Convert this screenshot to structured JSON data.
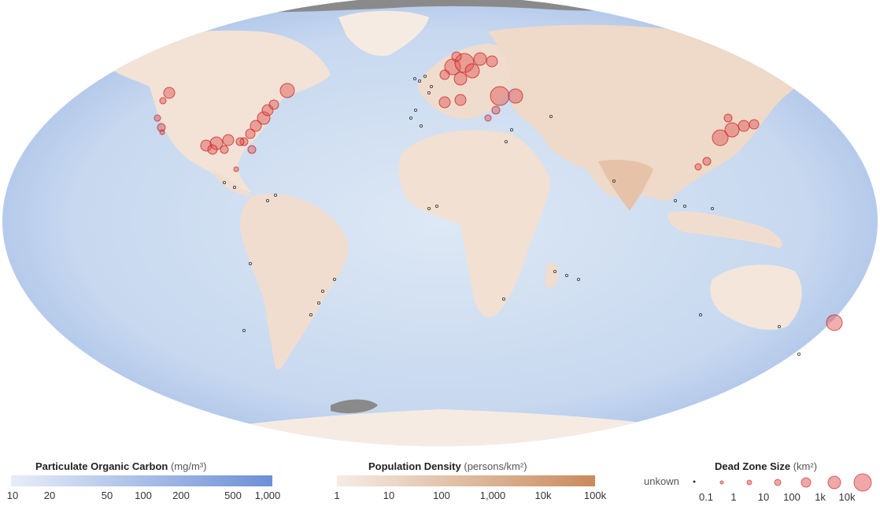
{
  "map": {
    "colors": {
      "ocean_low": "#dbe7f5",
      "ocean_high": "#6d90d6",
      "land": "#f6ebe3",
      "land_dense": "#d9ab8a",
      "ice": "#8a8a8a",
      "dead_zone_fill": "#e05050",
      "dead_zone_stroke": "#c01818",
      "unknown_dot": "#333333"
    }
  },
  "legend": {
    "carbon": {
      "title": "Particulate Organic Carbon",
      "unit": "(mg/m³)",
      "ticks": [
        "10",
        "20",
        "50",
        "100",
        "200",
        "500",
        "1,000"
      ],
      "color_start": "#e7eef9",
      "color_end": "#6d8fd8"
    },
    "population": {
      "title": "Population Density",
      "unit": "(persons/km²)",
      "ticks": [
        "1",
        "10",
        "100",
        "1,000",
        "10k",
        "100k"
      ],
      "color_start": "#f6ece4",
      "color_end": "#c98a5d"
    },
    "dead_zone": {
      "title": "Dead Zone Size",
      "unit": "(km²)",
      "unknown_label": "unkown",
      "ticks": [
        "0.1",
        "1",
        "10",
        "100",
        "1k",
        "10k"
      ]
    }
  }
}
